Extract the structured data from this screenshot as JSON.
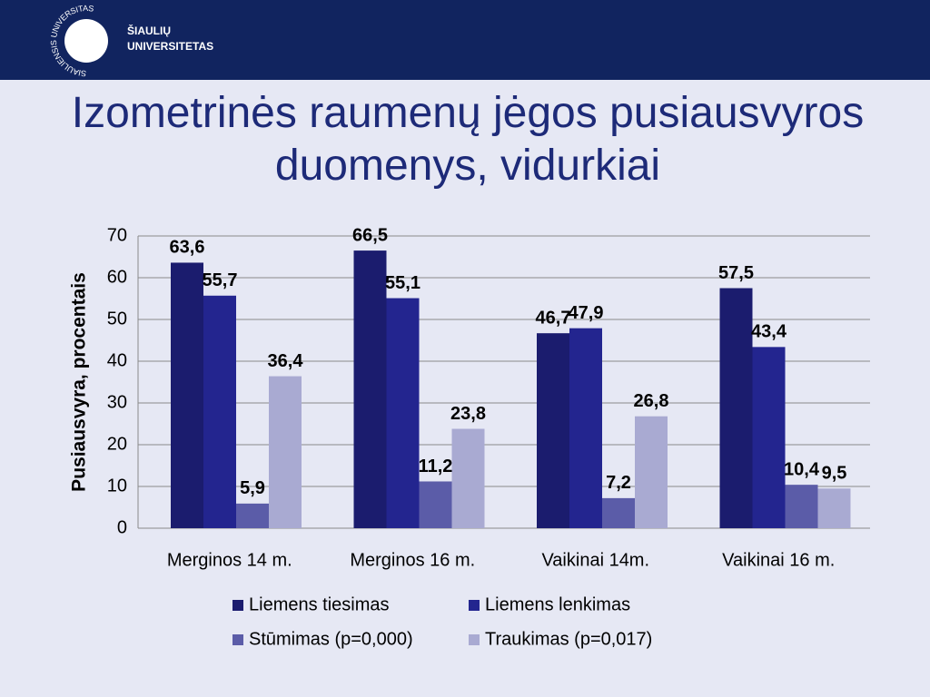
{
  "logo": {
    "ring": "SIAULIENSIS UNIVERSITAS",
    "name_line1": "ŠIAULIŲ",
    "name_line2": "UNIVERSITETAS"
  },
  "chart_data": {
    "type": "bar",
    "title": "Izometrinės raumenų jėgos pusiausvyros duomenys, vidurkiai",
    "ylabel": "Pusiausvyra, procentais",
    "categories": [
      "Merginos 14 m.",
      "Merginos 16 m.",
      "Vaikinai 14m.",
      "Vaikinai 16 m."
    ],
    "series": [
      {
        "name": "Liemens tiesimas",
        "color": "#1b1c6e",
        "values": [
          63.6,
          66.5,
          46.7,
          57.5
        ],
        "value_labels": [
          "63,6",
          "66,5",
          "46,7",
          "57,5"
        ]
      },
      {
        "name": "Liemens lenkimas",
        "color": "#23258f",
        "values": [
          55.7,
          55.1,
          47.9,
          43.4
        ],
        "value_labels": [
          "55,7",
          "55,1",
          "47,9",
          "43,4"
        ]
      },
      {
        "name": "Stūmimas (p=0,000)",
        "color": "#5b5ca8",
        "values": [
          5.9,
          11.2,
          7.2,
          10.4
        ],
        "value_labels": [
          "5,9",
          "11,2",
          "7,2",
          "10,4"
        ]
      },
      {
        "name": "Traukimas (p=0,017)",
        "color": "#a9aad2",
        "values": [
          36.4,
          23.8,
          26.8,
          9.5
        ],
        "value_labels": [
          "36,4",
          "23,8",
          "26,8",
          "9,5"
        ]
      }
    ],
    "ylim": [
      0,
      70
    ],
    "yticks": [
      0,
      10,
      20,
      30,
      40,
      50,
      60,
      70
    ],
    "grid": true,
    "legend": "bottom"
  }
}
